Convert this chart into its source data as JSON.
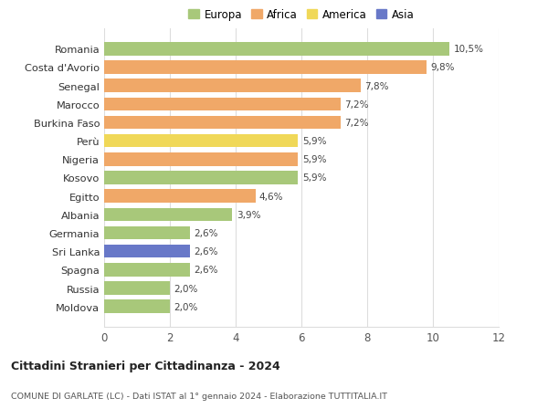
{
  "title": "Cittadini Stranieri per Cittadinanza - 2024",
  "subtitle": "COMUNE DI GARLATE (LC) - Dati ISTAT al 1° gennaio 2024 - Elaborazione TUTTITALIA.IT",
  "countries": [
    "Moldova",
    "Russia",
    "Spagna",
    "Sri Lanka",
    "Germania",
    "Albania",
    "Egitto",
    "Kosovo",
    "Nigeria",
    "Perù",
    "Burkina Faso",
    "Marocco",
    "Senegal",
    "Costa d'Avorio",
    "Romania"
  ],
  "values": [
    2.0,
    2.0,
    2.6,
    2.6,
    2.6,
    3.9,
    4.6,
    5.9,
    5.9,
    5.9,
    7.2,
    7.2,
    7.8,
    9.8,
    10.5
  ],
  "continents": [
    "Europa",
    "Europa",
    "Europa",
    "Asia",
    "Europa",
    "Europa",
    "Africa",
    "Europa",
    "Africa",
    "America",
    "Africa",
    "Africa",
    "Africa",
    "Africa",
    "Europa"
  ],
  "labels": [
    "2,0%",
    "2,0%",
    "2,6%",
    "2,6%",
    "2,6%",
    "3,9%",
    "4,6%",
    "5,9%",
    "5,9%",
    "5,9%",
    "7,2%",
    "7,2%",
    "7,8%",
    "9,8%",
    "10,5%"
  ],
  "colors": {
    "Europa": "#a8c87a",
    "Africa": "#f0a868",
    "America": "#f0d858",
    "Asia": "#6878c8"
  },
  "legend_entries": [
    "Europa",
    "Africa",
    "America",
    "Asia"
  ],
  "legend_colors": [
    "#a8c87a",
    "#f0a868",
    "#f0d858",
    "#6878c8"
  ],
  "xlim": [
    0,
    12
  ],
  "xticks": [
    0,
    2,
    4,
    6,
    8,
    10,
    12
  ],
  "background_color": "#ffffff",
  "grid_color": "#dddddd",
  "bar_height": 0.72
}
